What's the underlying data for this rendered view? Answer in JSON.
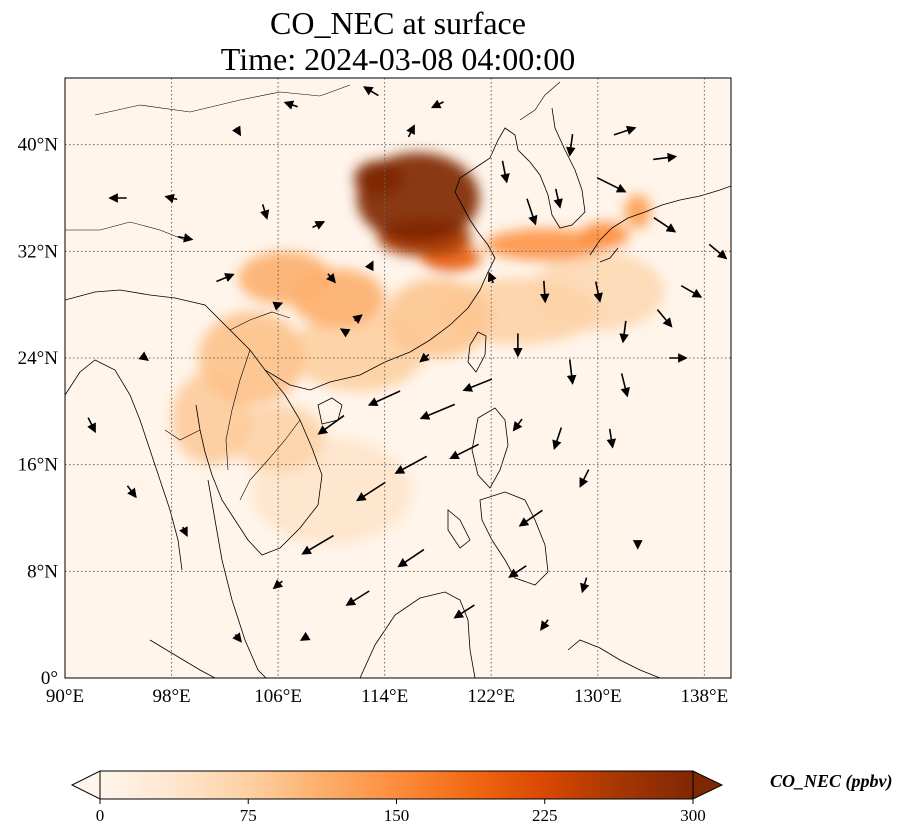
{
  "title": {
    "line1": "CO_NEC at surface",
    "line2": "Time: 2024-03-08 04:00:00"
  },
  "map": {
    "lon_range": [
      90,
      140
    ],
    "lat_range": [
      0,
      45
    ],
    "gridlines": true,
    "lon_ticks": [
      {
        "value": 90,
        "label": "90°E"
      },
      {
        "value": 98,
        "label": "98°E"
      },
      {
        "value": 106,
        "label": "106°E"
      },
      {
        "value": 114,
        "label": "114°E"
      },
      {
        "value": 122,
        "label": "122°E"
      },
      {
        "value": 130,
        "label": "130°E"
      },
      {
        "value": 138,
        "label": "138°E"
      }
    ],
    "lat_ticks": [
      {
        "value": 0,
        "label": "0°"
      },
      {
        "value": 8,
        "label": "8°N"
      },
      {
        "value": 16,
        "label": "16°N"
      },
      {
        "value": 24,
        "label": "24°N"
      },
      {
        "value": 32,
        "label": "32°N"
      },
      {
        "value": 40,
        "label": "40°N"
      }
    ],
    "plumes": [
      {
        "lon": 116.5,
        "lat": 36.0,
        "rx": 4.6,
        "ry": 3.4,
        "value": 300
      },
      {
        "lon": 113.5,
        "lat": 37.5,
        "rx": 1.8,
        "ry": 1.3,
        "value": 300
      },
      {
        "lon": 117.0,
        "lat": 33.0,
        "rx": 3.5,
        "ry": 1.4,
        "value": 260
      },
      {
        "lon": 119.0,
        "lat": 31.5,
        "rx": 2.2,
        "ry": 1.0,
        "value": 200
      },
      {
        "lon": 126.0,
        "lat": 32.5,
        "rx": 4.5,
        "ry": 1.2,
        "value": 140
      },
      {
        "lon": 130.5,
        "lat": 33.2,
        "rx": 1.8,
        "ry": 1.0,
        "value": 150
      },
      {
        "lon": 133.0,
        "lat": 35.0,
        "rx": 1.0,
        "ry": 1.3,
        "value": 130
      },
      {
        "lon": 106.5,
        "lat": 30.0,
        "rx": 3.5,
        "ry": 2.0,
        "value": 110
      },
      {
        "lon": 110.5,
        "lat": 28.5,
        "rx": 3.5,
        "ry": 2.2,
        "value": 110
      },
      {
        "lon": 104.0,
        "lat": 24.0,
        "rx": 4.0,
        "ry": 3.5,
        "value": 90
      },
      {
        "lon": 101.0,
        "lat": 19.5,
        "rx": 3.0,
        "ry": 3.5,
        "value": 80
      },
      {
        "lon": 106.0,
        "lat": 18.0,
        "rx": 3.5,
        "ry": 2.5,
        "value": 70
      },
      {
        "lon": 112.0,
        "lat": 24.5,
        "rx": 5.0,
        "ry": 3.0,
        "value": 75
      },
      {
        "lon": 118.0,
        "lat": 27.0,
        "rx": 4.0,
        "ry": 3.0,
        "value": 85
      },
      {
        "lon": 124.0,
        "lat": 27.5,
        "rx": 6.0,
        "ry": 2.5,
        "value": 70
      },
      {
        "lon": 130.0,
        "lat": 29.0,
        "rx": 5.0,
        "ry": 3.0,
        "value": 60
      },
      {
        "lon": 110.0,
        "lat": 14.0,
        "rx": 6.0,
        "ry": 4.0,
        "value": 40
      }
    ],
    "wind_arrows": [
      {
        "lon": 94,
        "lat": 36,
        "u": -1.2,
        "v": 0
      },
      {
        "lon": 98,
        "lat": 36,
        "u": -0.8,
        "v": 0.2
      },
      {
        "lon": 105,
        "lat": 35,
        "u": 0.3,
        "v": -1.0
      },
      {
        "lon": 109,
        "lat": 34,
        "u": 0.8,
        "v": 0.4
      },
      {
        "lon": 99,
        "lat": 33,
        "u": 1.0,
        "v": -0.2
      },
      {
        "lon": 102,
        "lat": 30,
        "u": 1.2,
        "v": 0.5
      },
      {
        "lon": 106,
        "lat": 28,
        "u": 0.5,
        "v": 0.2
      },
      {
        "lon": 111,
        "lat": 26,
        "u": -0.5,
        "v": 0.3
      },
      {
        "lon": 96,
        "lat": 24,
        "u": 0.4,
        "v": -0.3
      },
      {
        "lon": 92,
        "lat": 19,
        "u": 0.5,
        "v": -1.0
      },
      {
        "lon": 95,
        "lat": 14,
        "u": 0.6,
        "v": -0.8
      },
      {
        "lon": 99,
        "lat": 11,
        "u": 0.3,
        "v": -0.6
      },
      {
        "lon": 123,
        "lat": 38,
        "u": 0.3,
        "v": -1.5
      },
      {
        "lon": 125,
        "lat": 35,
        "u": 0.6,
        "v": -1.8
      },
      {
        "lon": 127,
        "lat": 36,
        "u": 0.3,
        "v": -1.3
      },
      {
        "lon": 128,
        "lat": 40,
        "u": -0.2,
        "v": -1.5
      },
      {
        "lon": 132,
        "lat": 41,
        "u": 1.5,
        "v": 0.5
      },
      {
        "lon": 135,
        "lat": 39,
        "u": 1.6,
        "v": 0.2
      },
      {
        "lon": 131,
        "lat": 37,
        "u": 2.0,
        "v": -1.0
      },
      {
        "lon": 135,
        "lat": 34,
        "u": 1.5,
        "v": -1.0
      },
      {
        "lon": 139,
        "lat": 32,
        "u": 1.2,
        "v": -1.0
      },
      {
        "lon": 137,
        "lat": 29,
        "u": 1.4,
        "v": -0.8
      },
      {
        "lon": 135,
        "lat": 27,
        "u": 1.0,
        "v": -1.2
      },
      {
        "lon": 132,
        "lat": 26,
        "u": -0.2,
        "v": -1.5
      },
      {
        "lon": 130,
        "lat": 29,
        "u": 0.3,
        "v": -1.4
      },
      {
        "lon": 126,
        "lat": 29,
        "u": 0.1,
        "v": -1.5
      },
      {
        "lon": 124,
        "lat": 25,
        "u": 0.0,
        "v": -1.6
      },
      {
        "lon": 128,
        "lat": 23,
        "u": 0.2,
        "v": -1.7
      },
      {
        "lon": 132,
        "lat": 22,
        "u": 0.4,
        "v": -1.6
      },
      {
        "lon": 136,
        "lat": 24,
        "u": 1.2,
        "v": 0.0
      },
      {
        "lon": 121,
        "lat": 22,
        "u": -2.0,
        "v": -0.8
      },
      {
        "lon": 118,
        "lat": 20,
        "u": -2.4,
        "v": -1.0
      },
      {
        "lon": 114,
        "lat": 21,
        "u": -2.2,
        "v": -1.0
      },
      {
        "lon": 110,
        "lat": 19,
        "u": -1.8,
        "v": -1.3
      },
      {
        "lon": 120,
        "lat": 17,
        "u": -2.0,
        "v": -1.0
      },
      {
        "lon": 116,
        "lat": 16,
        "u": -2.2,
        "v": -1.2
      },
      {
        "lon": 113,
        "lat": 14,
        "u": -2.0,
        "v": -1.3
      },
      {
        "lon": 109,
        "lat": 10,
        "u": -2.2,
        "v": -1.3
      },
      {
        "lon": 116,
        "lat": 9,
        "u": -1.8,
        "v": -1.2
      },
      {
        "lon": 112,
        "lat": 6,
        "u": -1.6,
        "v": -1.0
      },
      {
        "lon": 120,
        "lat": 5,
        "u": -1.4,
        "v": -0.9
      },
      {
        "lon": 125,
        "lat": 12,
        "u": -1.6,
        "v": -1.1
      },
      {
        "lon": 129,
        "lat": 15,
        "u": -0.6,
        "v": -1.2
      },
      {
        "lon": 127,
        "lat": 18,
        "u": -0.5,
        "v": -1.5
      },
      {
        "lon": 131,
        "lat": 18,
        "u": 0.2,
        "v": -1.3
      },
      {
        "lon": 124,
        "lat": 8,
        "u": -1.2,
        "v": -0.8
      },
      {
        "lon": 129,
        "lat": 7,
        "u": -0.3,
        "v": -1.0
      },
      {
        "lon": 126,
        "lat": 4,
        "u": -0.5,
        "v": -0.7
      },
      {
        "lon": 133,
        "lat": 10,
        "u": 0.0,
        "v": -0.5
      },
      {
        "lon": 106,
        "lat": 7,
        "u": -0.6,
        "v": -0.5
      },
      {
        "lon": 103,
        "lat": 3,
        "u": 0.4,
        "v": -0.5
      },
      {
        "lon": 108,
        "lat": 3,
        "u": -0.5,
        "v": -0.3
      },
      {
        "lon": 116,
        "lat": 41,
        "u": 0.4,
        "v": 0.8
      },
      {
        "lon": 118,
        "lat": 43,
        "u": -0.8,
        "v": -0.4
      },
      {
        "lon": 113,
        "lat": 44,
        "u": -1.0,
        "v": 0.6
      },
      {
        "lon": 107,
        "lat": 43,
        "u": -0.9,
        "v": 0.3
      },
      {
        "lon": 103,
        "lat": 41,
        "u": 0.3,
        "v": -0.5
      },
      {
        "lon": 110,
        "lat": 30,
        "u": 0.5,
        "v": -0.6
      },
      {
        "lon": 113,
        "lat": 31,
        "u": 0.2,
        "v": 0.4
      },
      {
        "lon": 112,
        "lat": 27,
        "u": 0.5,
        "v": 0.4
      },
      {
        "lon": 117,
        "lat": 24,
        "u": -0.6,
        "v": -0.5
      },
      {
        "lon": 122,
        "lat": 30,
        "u": -0.3,
        "v": 0.7
      },
      {
        "lon": 124,
        "lat": 19,
        "u": -0.6,
        "v": -0.8
      }
    ]
  },
  "colorbar": {
    "title": "CO_NEC (ppbv)",
    "min": 0,
    "max": 300,
    "ticks": [
      {
        "value": 0,
        "label": "0"
      },
      {
        "value": 75,
        "label": "75"
      },
      {
        "value": 150,
        "label": "150"
      },
      {
        "value": 225,
        "label": "225"
      },
      {
        "value": 300,
        "label": "300"
      }
    ],
    "colors": [
      "#fff5eb",
      "#fee6ce",
      "#fdd0a2",
      "#fdae6b",
      "#fd8d3c",
      "#f16913",
      "#d94801",
      "#a63603",
      "#7f2704"
    ],
    "extend": "both"
  }
}
